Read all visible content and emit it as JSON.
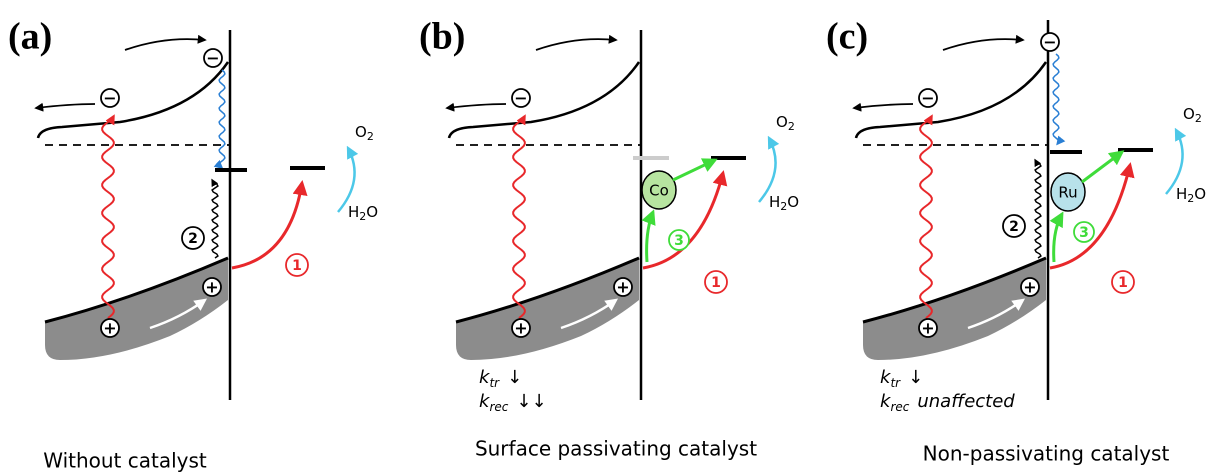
{
  "panels": [
    {
      "label": "(a)",
      "caption": "Without catalyst",
      "bulk_electron": "−",
      "surface_electron": "−",
      "bulk_hole": "+",
      "surface_hole": "+",
      "o2": {
        "base": "O",
        "sub": "2"
      },
      "h2o": {
        "base": "H",
        "sub": "2",
        "tail": "O"
      },
      "step_transfer": "1",
      "step_recombination": "2"
    },
    {
      "label": "(b)",
      "caption": "Surface passivating catalyst",
      "bulk_electron": "−",
      "bulk_hole": "+",
      "surface_hole": "+",
      "o2": {
        "base": "O",
        "sub": "2"
      },
      "h2o": {
        "base": "H",
        "sub": "2",
        "tail": "O"
      },
      "step_transfer": "1",
      "step_catalyst": "3",
      "catalyst": "Co",
      "kinetics": [
        {
          "k": "k",
          "sub": "tr",
          "note": "↓"
        },
        {
          "k": "k",
          "sub": "rec",
          "note": "↓↓"
        }
      ]
    },
    {
      "label": "(c)",
      "caption": "Non-passivating catalyst",
      "bulk_electron": "−",
      "surface_electron": "−",
      "bulk_hole": "+",
      "surface_hole": "+",
      "o2": {
        "base": "O",
        "sub": "2"
      },
      "h2o": {
        "base": "H",
        "sub": "2",
        "tail": "O"
      },
      "step_transfer": "1",
      "step_recombination": "2",
      "step_catalyst": "3",
      "catalyst": "Ru",
      "kinetics": [
        {
          "k": "k",
          "sub": "tr",
          "note": "↓"
        },
        {
          "k": "k",
          "sub": "rec",
          "note": "unaffected"
        }
      ]
    }
  ]
}
